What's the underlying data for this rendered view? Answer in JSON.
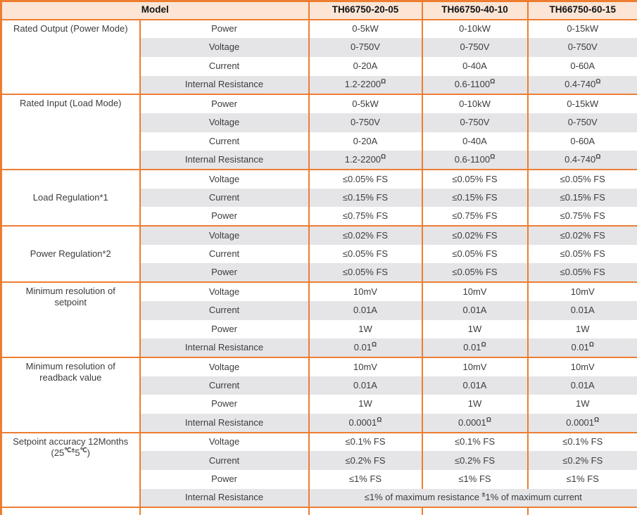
{
  "colors": {
    "border_orange": "#ED7D31",
    "header_bg": "#FCE5D5",
    "shaded_row_bg": "#E5E5E8",
    "text": "#3C3C3C"
  },
  "table": {
    "header": {
      "model_label": "Model",
      "models": [
        "TH66750-20-05",
        "TH66750-40-10",
        "TH66750-60-15"
      ]
    },
    "sections": [
      {
        "label_lines": [
          [
            "Rated Output (Power Mode)"
          ]
        ],
        "valign": "top",
        "rows": [
          {
            "param": "Power",
            "values": [
              "0-5kW",
              "0-10kW",
              "0-15kW"
            ]
          },
          {
            "param": "Voltage",
            "values": [
              "0-750V",
              "0-750V",
              "0-750V"
            ]
          },
          {
            "param": "Current",
            "values": [
              "0-20A",
              "0-40A",
              "0-60A"
            ]
          },
          {
            "param": "Internal Resistance",
            "values": [
              [
                "1.2-2200",
                {
                  "sup": "Ω"
                }
              ],
              [
                "0.6-1100",
                {
                  "sup": "Ω"
                }
              ],
              [
                "0.4-740",
                {
                  "sup": "Ω"
                }
              ]
            ]
          }
        ]
      },
      {
        "label_lines": [
          [
            "Rated Input (Load Mode)"
          ]
        ],
        "valign": "top",
        "rows": [
          {
            "param": "Power",
            "values": [
              "0-5kW",
              "0-10kW",
              "0-15kW"
            ]
          },
          {
            "param": "Voltage",
            "values": [
              "0-750V",
              "0-750V",
              "0-750V"
            ]
          },
          {
            "param": "Current",
            "values": [
              "0-20A",
              "0-40A",
              "0-60A"
            ]
          },
          {
            "param": "Internal Resistance",
            "values": [
              [
                "1.2-2200",
                {
                  "sup": "Ω"
                }
              ],
              [
                "0.6-1100",
                {
                  "sup": "Ω"
                }
              ],
              [
                "0.4-740",
                {
                  "sup": "Ω"
                }
              ]
            ]
          }
        ]
      },
      {
        "label_lines": [
          [
            "Load Regulation*1"
          ]
        ],
        "valign": "middle",
        "rows": [
          {
            "param": "Voltage",
            "values": [
              "≤0.05% FS",
              "≤0.05% FS",
              "≤0.05% FS"
            ]
          },
          {
            "param": "Current",
            "values": [
              "≤0.15% FS",
              "≤0.15% FS",
              "≤0.15% FS"
            ]
          },
          {
            "param": "Power",
            "values": [
              "≤0.75% FS",
              "≤0.75% FS",
              "≤0.75% FS"
            ]
          }
        ]
      },
      {
        "label_lines": [
          [
            "Power Regulation*2"
          ]
        ],
        "valign": "middle",
        "rows": [
          {
            "param": "Voltage",
            "values": [
              "≤0.02% FS",
              "≤0.02% FS",
              "≤0.02% FS"
            ]
          },
          {
            "param": "Current",
            "values": [
              "≤0.05% FS",
              "≤0.05% FS",
              "≤0.05% FS"
            ]
          },
          {
            "param": "Power",
            "values": [
              "≤0.05% FS",
              "≤0.05% FS",
              "≤0.05% FS"
            ]
          }
        ]
      },
      {
        "label_lines": [
          [
            "Minimum resolution of"
          ],
          [
            "setpoint"
          ]
        ],
        "valign": "top",
        "rows": [
          {
            "param": "Voltage",
            "values": [
              "10mV",
              "10mV",
              "10mV"
            ]
          },
          {
            "param": "Current",
            "values": [
              "0.01A",
              "0.01A",
              "0.01A"
            ]
          },
          {
            "param": "Power",
            "values": [
              "1W",
              "1W",
              "1W"
            ]
          },
          {
            "param": "Internal Resistance",
            "values": [
              [
                "0.01",
                {
                  "sup": "Ω"
                }
              ],
              [
                "0.01",
                {
                  "sup": "Ω"
                }
              ],
              [
                "0.01",
                {
                  "sup": "Ω"
                }
              ]
            ]
          }
        ]
      },
      {
        "label_lines": [
          [
            "Minimum resolution of"
          ],
          [
            "readback value"
          ]
        ],
        "valign": "top",
        "rows": [
          {
            "param": "Voltage",
            "values": [
              "10mV",
              "10mV",
              "10mV"
            ]
          },
          {
            "param": "Current",
            "values": [
              "0.01A",
              "0.01A",
              "0.01A"
            ]
          },
          {
            "param": "Power",
            "values": [
              "1W",
              "1W",
              "1W"
            ]
          },
          {
            "param": "Internal Resistance",
            "values": [
              [
                "0.0001",
                {
                  "sup": "Ω"
                }
              ],
              [
                "0.0001",
                {
                  "sup": "Ω"
                }
              ],
              [
                "0.0001",
                {
                  "sup": "Ω"
                }
              ]
            ]
          }
        ]
      },
      {
        "label_lines": [
          [
            "Setpoint accuracy 12Months"
          ],
          [
            "(25",
            {
              "sup": "℃±"
            },
            "5",
            {
              "sup": "℃"
            },
            ")"
          ]
        ],
        "valign": "top",
        "rows": [
          {
            "param": "Voltage",
            "values": [
              "≤0.1% FS",
              "≤0.1% FS",
              "≤0.1% FS"
            ]
          },
          {
            "param": "Current",
            "values": [
              "≤0.2% FS",
              "≤0.2% FS",
              "≤0.2% FS"
            ]
          },
          {
            "param": "Power",
            "values": [
              "≤1% FS",
              "≤1% FS",
              "≤1% FS"
            ]
          },
          {
            "param": "Internal Resistance",
            "values_span": [
              "≤1% of maximum resistance ",
              {
                "sup": "±"
              },
              "1% of maximum current"
            ]
          }
        ]
      }
    ]
  }
}
